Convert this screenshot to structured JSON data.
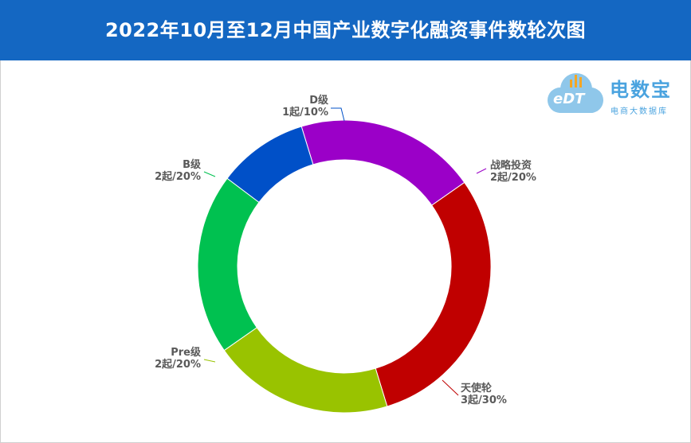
{
  "title": "2022年10月至12月中国产业数字化融资事件数轮次图",
  "logo": {
    "mark": "eDT",
    "name": "电数宝",
    "subtitle": "电商大数据库",
    "colors": {
      "cloud": "#8fc7ea",
      "accent": "#4aa3df",
      "bars": "#f5a623"
    }
  },
  "colors": {
    "title_bg": "#1467c2",
    "title_text": "#ffffff",
    "label_text": "#595959"
  },
  "chart_data": {
    "type": "pie",
    "variant": "donut",
    "title": "2022年10月至12月中国产业数字化融资事件数轮次图",
    "unit": "起",
    "slices": [
      {
        "name": "战略投资",
        "value": 2,
        "percent": "20%",
        "label": "2起/20%",
        "color": "#9b00c8"
      },
      {
        "name": "天使轮",
        "value": 3,
        "percent": "30%",
        "label": "3起/30%",
        "color": "#c00000"
      },
      {
        "name": "Pre级",
        "value": 2,
        "percent": "20%",
        "label": "2起/20%",
        "color": "#99c300"
      },
      {
        "name": "B级",
        "value": 2,
        "percent": "20%",
        "label": "2起/20%",
        "color": "#00c150"
      },
      {
        "name": "D级",
        "value": 1,
        "percent": "10%",
        "label": "1起/10%",
        "color": "#0050c8"
      }
    ]
  }
}
